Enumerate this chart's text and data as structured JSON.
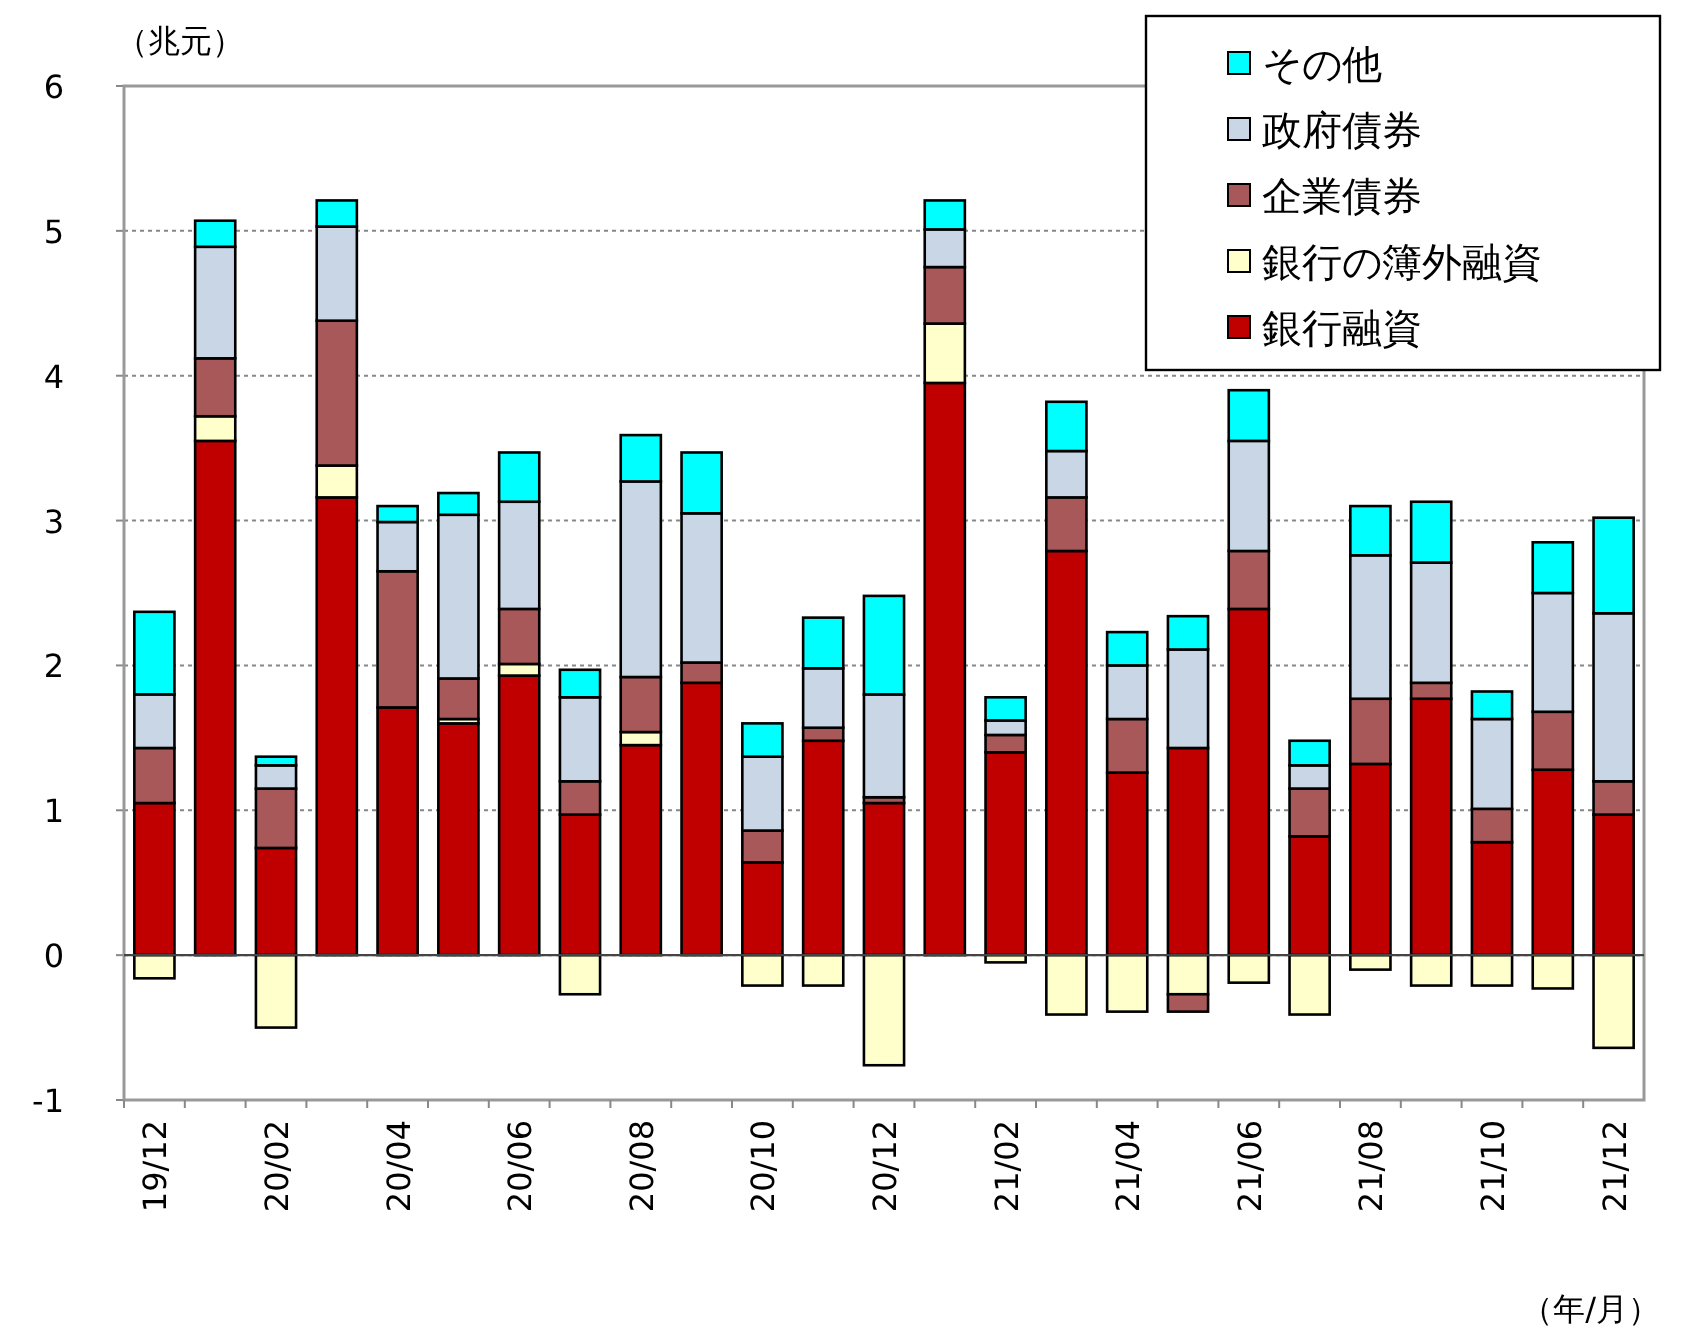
{
  "chart_data": {
    "type": "bar",
    "stacked": true,
    "ylabel": "（兆元）",
    "xlabel": "（年/月）",
    "categories": [
      "19/12",
      null,
      "20/02",
      null,
      "20/04",
      null,
      "20/06",
      null,
      "20/08",
      null,
      "20/10",
      null,
      "20/12",
      null,
      "21/02",
      null,
      "21/04",
      null,
      "21/06",
      null,
      "21/08",
      null,
      "21/10",
      null,
      "21/12"
    ],
    "series": [
      {
        "name": "銀行融資",
        "color": "#c00000",
        "values": [
          1.05,
          3.55,
          0.74,
          3.16,
          1.71,
          1.6,
          1.93,
          0.97,
          1.45,
          1.88,
          0.64,
          1.48,
          1.05,
          3.95,
          1.4,
          2.79,
          1.26,
          1.43,
          2.39,
          0.82,
          1.32,
          1.77,
          0.78,
          1.28,
          0.97
        ]
      },
      {
        "name": "銀行の簿外融資",
        "color": "#ffffcc",
        "values": [
          -0.16,
          0.17,
          -0.5,
          0.22,
          0,
          0.03,
          0.08,
          -0.27,
          0.09,
          0,
          -0.21,
          -0.21,
          -0.76,
          0.41,
          -0.05,
          -0.41,
          -0.39,
          -0.27,
          -0.19,
          -0.41,
          -0.1,
          -0.21,
          -0.21,
          -0.23,
          -0.64
        ]
      },
      {
        "name": "企業債券",
        "color": "#a85858",
        "values": [
          0.38,
          0.4,
          0.41,
          1.0,
          0.94,
          0.28,
          0.38,
          0.23,
          0.38,
          0.14,
          0.22,
          0.09,
          0.04,
          0.39,
          0.12,
          0.37,
          0.37,
          -0.12,
          0.4,
          0.33,
          0.45,
          0.11,
          0.23,
          0.4,
          0.23
        ]
      },
      {
        "name": "政府債券",
        "color": "#c8d6e6",
        "values": [
          0.37,
          0.77,
          0.16,
          0.65,
          0.34,
          1.13,
          0.74,
          0.58,
          1.35,
          1.03,
          0.51,
          0.41,
          0.71,
          0.26,
          0.1,
          0.32,
          0.37,
          0.68,
          0.76,
          0.16,
          0.99,
          0.83,
          0.62,
          0.82,
          1.16
        ]
      },
      {
        "name": "その他",
        "color": "#00ffff",
        "values": [
          0.57,
          0.18,
          0.06,
          0.18,
          0.11,
          0.15,
          0.34,
          0.19,
          0.32,
          0.42,
          0.23,
          0.35,
          0.68,
          0.2,
          0.16,
          0.34,
          0.23,
          0.23,
          0.35,
          0.17,
          0.34,
          0.42,
          0.19,
          0.35,
          0.66
        ]
      }
    ],
    "ylim": [
      -1,
      6
    ],
    "yticks": [
      -1,
      0,
      1,
      2,
      3,
      4,
      5,
      6
    ],
    "grid": "y",
    "legend": "top right"
  }
}
